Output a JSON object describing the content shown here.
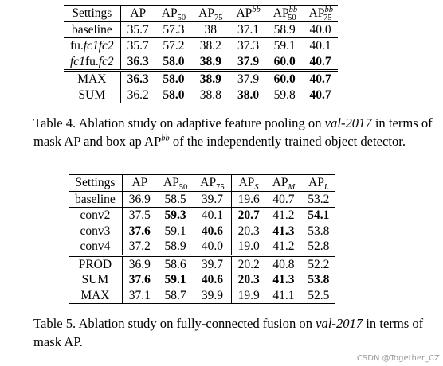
{
  "table4": {
    "header": {
      "settings": "Settings",
      "ap": "AP",
      "ap50_main": "AP",
      "ap50_sub": "50",
      "ap75_main": "AP",
      "ap75_sub": "75",
      "apbb_main": "AP",
      "apbb_sup": "bb",
      "apbb50_main": "AP",
      "apbb50_sup": "bb",
      "apbb50_sub": "50",
      "apbb75_main": "AP",
      "apbb75_sup": "bb",
      "apbb75_sub": "75"
    },
    "rows": [
      {
        "label": "baseline",
        "vals": [
          "35.7",
          "57.3",
          "38",
          "37.1",
          "58.9",
          "40.0"
        ]
      },
      {
        "label": "fu.fc1fc2",
        "vals": [
          "35.7",
          "57.2",
          "38.2",
          "37.3",
          "59.1",
          "40.1"
        ]
      },
      {
        "label": "fc1fu.fc2",
        "vals": [
          "36.3",
          "58.0",
          "38.9",
          "37.9",
          "60.0",
          "40.7"
        ]
      },
      {
        "label": "MAX",
        "vals": [
          "36.3",
          "58.0",
          "38.9",
          "37.9",
          "60.0",
          "40.7"
        ]
      },
      {
        "label": "SUM",
        "vals": [
          "36.2",
          "58.0",
          "38.8",
          "38.0",
          "59.8",
          "40.7"
        ]
      }
    ],
    "caption_label": "Table 4. Ablation study on adaptive feature pooling on ",
    "caption_italic": "val-2017",
    "caption_rest": " in terms of mask AP and box ap AP",
    "caption_sup": "bb",
    "caption_end": " of the independently trained object detector."
  },
  "table5": {
    "header": {
      "settings": "Settings",
      "ap": "AP",
      "ap50_main": "AP",
      "ap50_sub": "50",
      "ap75_main": "AP",
      "ap75_sub": "75",
      "aps_main": "AP",
      "aps_sub": "S",
      "apm_main": "AP",
      "apm_sub": "M",
      "apl_main": "AP",
      "apl_sub": "L"
    },
    "rows": [
      {
        "label": "baseline",
        "vals": [
          "36.9",
          "58.5",
          "39.7",
          "19.6",
          "40.7",
          "53.2"
        ]
      },
      {
        "label": "conv2",
        "vals": [
          "37.5",
          "59.3",
          "40.1",
          "20.7",
          "41.2",
          "54.1"
        ]
      },
      {
        "label": "conv3",
        "vals": [
          "37.6",
          "59.1",
          "40.6",
          "20.3",
          "41.3",
          "53.8"
        ]
      },
      {
        "label": "conv4",
        "vals": [
          "37.2",
          "58.9",
          "40.0",
          "19.0",
          "41.2",
          "52.8"
        ]
      },
      {
        "label": "PROD",
        "vals": [
          "36.9",
          "58.6",
          "39.7",
          "20.2",
          "40.8",
          "52.2"
        ]
      },
      {
        "label": "SUM",
        "vals": [
          "37.6",
          "59.1",
          "40.6",
          "20.3",
          "41.3",
          "53.8"
        ]
      },
      {
        "label": "MAX",
        "vals": [
          "37.1",
          "58.7",
          "39.9",
          "19.9",
          "41.1",
          "52.5"
        ]
      }
    ],
    "caption_label": "Table 5. Ablation study on fully-connected fusion on ",
    "caption_italic": "val-2017",
    "caption_rest": " in terms of mask AP."
  },
  "watermark": "CSDN @Together_CZ"
}
